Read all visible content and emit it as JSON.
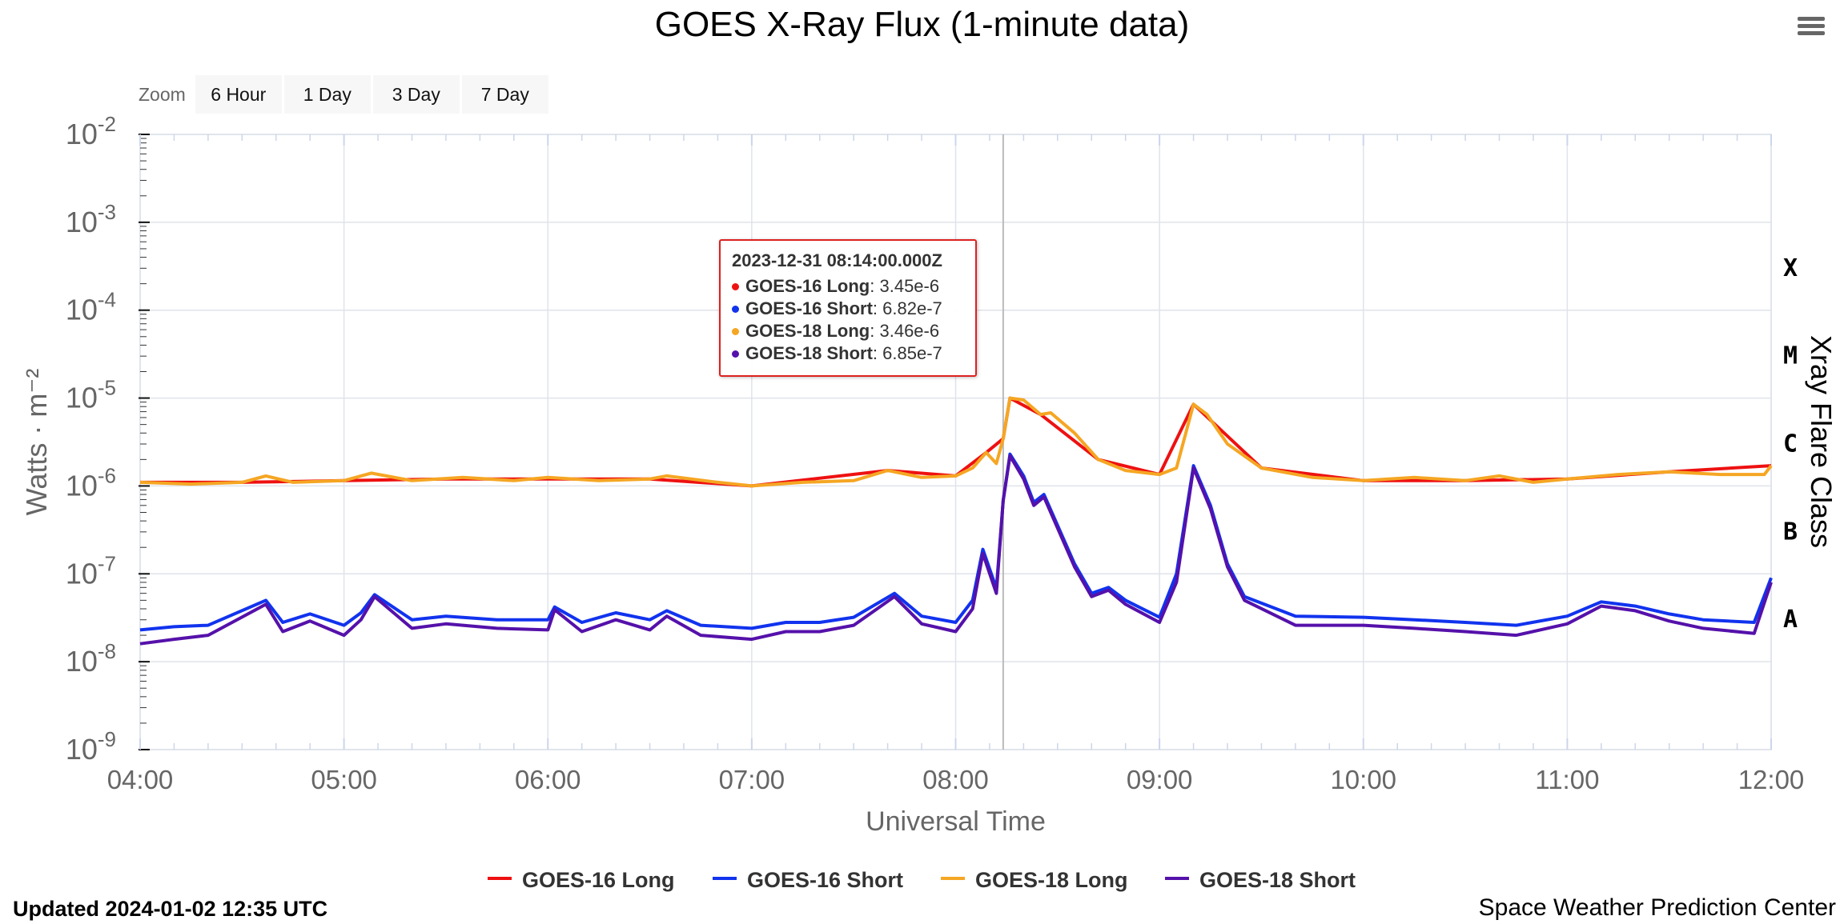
{
  "page": {
    "title": "GOES X-Ray Flux (1-minute data)",
    "updated": "Updated 2024-01-02 12:35 UTC",
    "credit": "Space Weather Prediction Center",
    "menu_icon": "hamburger-menu-icon"
  },
  "zoom": {
    "label": "Zoom",
    "buttons": [
      "6 Hour",
      "1 Day",
      "3 Day",
      "7 Day"
    ]
  },
  "tooltip": {
    "timestamp": "2023-12-31 08:14:00.000Z",
    "rows": [
      {
        "name": "GOES-16 Long",
        "value": "3.45e-6",
        "color": "#ee1111"
      },
      {
        "name": "GOES-16 Short",
        "value": "6.82e-7",
        "color": "#1133ee"
      },
      {
        "name": "GOES-18 Long",
        "value": "3.46e-6",
        "color": "#f5a623"
      },
      {
        "name": "GOES-18 Short",
        "value": "6.85e-7",
        "color": "#5511aa"
      }
    ]
  },
  "chart_data": {
    "type": "line",
    "title": "GOES X-Ray Flux (1-minute data)",
    "xlabel": "Universal Time",
    "ylabel": "Watts · m⁻²",
    "y2label": "Xray Flare Class",
    "yscale": "log",
    "ylim": [
      1e-09,
      0.01
    ],
    "xlim": [
      "04:00",
      "12:00"
    ],
    "x_ticks": [
      "04:00",
      "05:00",
      "06:00",
      "07:00",
      "08:00",
      "09:00",
      "10:00",
      "11:00",
      "12:00"
    ],
    "y_tick_exponents": [
      -2,
      -3,
      -4,
      -5,
      -6,
      -7,
      -8,
      -9
    ],
    "flare_classes": [
      {
        "label": "X",
        "flux": 0.0001
      },
      {
        "label": "M",
        "flux": 1e-05
      },
      {
        "label": "C",
        "flux": 1e-06
      },
      {
        "label": "B",
        "flux": 1e-07
      },
      {
        "label": "A",
        "flux": 1e-08
      }
    ],
    "crosshair_time": "08:14",
    "grid": true,
    "legend_position": "bottom",
    "series": [
      {
        "name": "GOES-18 Long",
        "color": "#f5a623",
        "points": [
          [
            "04:00",
            1.1e-06
          ],
          [
            "04:15",
            1.05e-06
          ],
          [
            "04:30",
            1.1e-06
          ],
          [
            "04:37",
            1.3e-06
          ],
          [
            "04:45",
            1.1e-06
          ],
          [
            "05:00",
            1.15e-06
          ],
          [
            "05:08",
            1.4e-06
          ],
          [
            "05:20",
            1.15e-06
          ],
          [
            "05:35",
            1.25e-06
          ],
          [
            "05:50",
            1.15e-06
          ],
          [
            "06:00",
            1.25e-06
          ],
          [
            "06:15",
            1.15e-06
          ],
          [
            "06:30",
            1.2e-06
          ],
          [
            "06:35",
            1.3e-06
          ],
          [
            "06:50",
            1.1e-06
          ],
          [
            "07:00",
            1e-06
          ],
          [
            "07:15",
            1.1e-06
          ],
          [
            "07:30",
            1.15e-06
          ],
          [
            "07:40",
            1.5e-06
          ],
          [
            "07:50",
            1.25e-06
          ],
          [
            "08:00",
            1.3e-06
          ],
          [
            "08:05",
            1.6e-06
          ],
          [
            "08:09",
            2.4e-06
          ],
          [
            "08:12",
            1.8e-06
          ],
          [
            "08:14",
            3.46e-06
          ],
          [
            "08:16",
            1e-05
          ],
          [
            "08:20",
            9.5e-06
          ],
          [
            "08:25",
            6.5e-06
          ],
          [
            "08:28",
            6.8e-06
          ],
          [
            "08:35",
            4e-06
          ],
          [
            "08:42",
            2e-06
          ],
          [
            "08:50",
            1.5e-06
          ],
          [
            "09:00",
            1.35e-06
          ],
          [
            "09:05",
            1.6e-06
          ],
          [
            "09:10",
            8.5e-06
          ],
          [
            "09:14",
            6.5e-06
          ],
          [
            "09:20",
            3e-06
          ],
          [
            "09:30",
            1.6e-06
          ],
          [
            "09:45",
            1.25e-06
          ],
          [
            "10:00",
            1.15e-06
          ],
          [
            "10:15",
            1.25e-06
          ],
          [
            "10:30",
            1.15e-06
          ],
          [
            "10:40",
            1.3e-06
          ],
          [
            "10:50",
            1.1e-06
          ],
          [
            "11:00",
            1.2e-06
          ],
          [
            "11:15",
            1.35e-06
          ],
          [
            "11:30",
            1.45e-06
          ],
          [
            "11:45",
            1.35e-06
          ],
          [
            "11:58",
            1.35e-06
          ],
          [
            "12:00",
            1.7e-06
          ]
        ]
      },
      {
        "name": "GOES-16 Long",
        "color": "#ee1111",
        "points": [
          [
            "04:00",
            1.1e-06
          ],
          [
            "04:30",
            1.1e-06
          ],
          [
            "05:00",
            1.15e-06
          ],
          [
            "05:30",
            1.2e-06
          ],
          [
            "06:00",
            1.2e-06
          ],
          [
            "06:30",
            1.2e-06
          ],
          [
            "07:00",
            1e-06
          ],
          [
            "07:40",
            1.5e-06
          ],
          [
            "08:00",
            1.3e-06
          ],
          [
            "08:09",
            2.4e-06
          ],
          [
            "08:14",
            3.45e-06
          ],
          [
            "08:16",
            1e-05
          ],
          [
            "08:25",
            6.5e-06
          ],
          [
            "08:42",
            2e-06
          ],
          [
            "09:00",
            1.35e-06
          ],
          [
            "09:10",
            8.5e-06
          ],
          [
            "09:30",
            1.6e-06
          ],
          [
            "10:00",
            1.15e-06
          ],
          [
            "10:30",
            1.15e-06
          ],
          [
            "11:00",
            1.2e-06
          ],
          [
            "11:30",
            1.45e-06
          ],
          [
            "12:00",
            1.7e-06
          ]
        ]
      },
      {
        "name": "GOES-16 Short",
        "color": "#1133ee",
        "points": [
          [
            "04:00",
            2.3e-08
          ],
          [
            "04:10",
            2.5e-08
          ],
          [
            "04:20",
            2.6e-08
          ],
          [
            "04:37",
            5e-08
          ],
          [
            "04:42",
            2.8e-08
          ],
          [
            "04:50",
            3.5e-08
          ],
          [
            "05:00",
            2.6e-08
          ],
          [
            "05:05",
            3.6e-08
          ],
          [
            "05:09",
            5.8e-08
          ],
          [
            "05:20",
            3e-08
          ],
          [
            "05:30",
            3.3e-08
          ],
          [
            "05:45",
            3e-08
          ],
          [
            "06:00",
            3e-08
          ],
          [
            "06:02",
            4.2e-08
          ],
          [
            "06:10",
            2.8e-08
          ],
          [
            "06:20",
            3.6e-08
          ],
          [
            "06:30",
            3e-08
          ],
          [
            "06:35",
            3.8e-08
          ],
          [
            "06:45",
            2.6e-08
          ],
          [
            "07:00",
            2.4e-08
          ],
          [
            "07:10",
            2.8e-08
          ],
          [
            "07:20",
            2.8e-08
          ],
          [
            "07:30",
            3.2e-08
          ],
          [
            "07:42",
            6e-08
          ],
          [
            "07:50",
            3.3e-08
          ],
          [
            "08:00",
            2.8e-08
          ],
          [
            "08:05",
            5e-08
          ],
          [
            "08:08",
            1.9e-07
          ],
          [
            "08:12",
            6.8e-08
          ],
          [
            "08:14",
            6.82e-07
          ],
          [
            "08:16",
            2.3e-06
          ],
          [
            "08:20",
            1.3e-06
          ],
          [
            "08:23",
            6.5e-07
          ],
          [
            "08:26",
            8e-07
          ],
          [
            "08:35",
            1.3e-07
          ],
          [
            "08:40",
            6e-08
          ],
          [
            "08:45",
            7e-08
          ],
          [
            "08:50",
            5e-08
          ],
          [
            "09:00",
            3.2e-08
          ],
          [
            "09:05",
            1e-07
          ],
          [
            "09:10",
            1.7e-06
          ],
          [
            "09:15",
            6e-07
          ],
          [
            "09:20",
            1.3e-07
          ],
          [
            "09:25",
            5.5e-08
          ],
          [
            "09:40",
            3.3e-08
          ],
          [
            "10:00",
            3.2e-08
          ],
          [
            "10:15",
            3e-08
          ],
          [
            "10:30",
            2.8e-08
          ],
          [
            "10:45",
            2.6e-08
          ],
          [
            "11:00",
            3.3e-08
          ],
          [
            "11:10",
            4.8e-08
          ],
          [
            "11:20",
            4.3e-08
          ],
          [
            "11:30",
            3.5e-08
          ],
          [
            "11:40",
            3e-08
          ],
          [
            "11:55",
            2.8e-08
          ],
          [
            "12:00",
            9e-08
          ]
        ]
      },
      {
        "name": "GOES-18 Short",
        "color": "#5511aa",
        "points": [
          [
            "04:00",
            1.6e-08
          ],
          [
            "04:10",
            1.8e-08
          ],
          [
            "04:20",
            2e-08
          ],
          [
            "04:37",
            4.5e-08
          ],
          [
            "04:42",
            2.2e-08
          ],
          [
            "04:50",
            2.9e-08
          ],
          [
            "05:00",
            2e-08
          ],
          [
            "05:05",
            3e-08
          ],
          [
            "05:09",
            5.5e-08
          ],
          [
            "05:20",
            2.4e-08
          ],
          [
            "05:30",
            2.7e-08
          ],
          [
            "05:45",
            2.4e-08
          ],
          [
            "06:00",
            2.3e-08
          ],
          [
            "06:02",
            3.9e-08
          ],
          [
            "06:10",
            2.2e-08
          ],
          [
            "06:20",
            3e-08
          ],
          [
            "06:30",
            2.3e-08
          ],
          [
            "06:35",
            3.3e-08
          ],
          [
            "06:45",
            2e-08
          ],
          [
            "07:00",
            1.8e-08
          ],
          [
            "07:10",
            2.2e-08
          ],
          [
            "07:20",
            2.2e-08
          ],
          [
            "07:30",
            2.6e-08
          ],
          [
            "07:42",
            5.5e-08
          ],
          [
            "07:50",
            2.7e-08
          ],
          [
            "08:00",
            2.2e-08
          ],
          [
            "08:05",
            4e-08
          ],
          [
            "08:08",
            1.7e-07
          ],
          [
            "08:12",
            6e-08
          ],
          [
            "08:14",
            6.85e-07
          ],
          [
            "08:16",
            2.2e-06
          ],
          [
            "08:20",
            1.2e-06
          ],
          [
            "08:23",
            6e-07
          ],
          [
            "08:26",
            7.5e-07
          ],
          [
            "08:35",
            1.2e-07
          ],
          [
            "08:40",
            5.5e-08
          ],
          [
            "08:45",
            6.5e-08
          ],
          [
            "08:50",
            4.5e-08
          ],
          [
            "09:00",
            2.8e-08
          ],
          [
            "09:05",
            8e-08
          ],
          [
            "09:10",
            1.6e-06
          ],
          [
            "09:15",
            5.5e-07
          ],
          [
            "09:20",
            1.2e-07
          ],
          [
            "09:25",
            5e-08
          ],
          [
            "09:40",
            2.6e-08
          ],
          [
            "10:00",
            2.6e-08
          ],
          [
            "10:15",
            2.4e-08
          ],
          [
            "10:30",
            2.2e-08
          ],
          [
            "10:45",
            2e-08
          ],
          [
            "11:00",
            2.7e-08
          ],
          [
            "11:10",
            4.3e-08
          ],
          [
            "11:20",
            3.8e-08
          ],
          [
            "11:30",
            2.9e-08
          ],
          [
            "11:40",
            2.4e-08
          ],
          [
            "11:55",
            2.1e-08
          ],
          [
            "12:00",
            8e-08
          ]
        ]
      }
    ]
  }
}
